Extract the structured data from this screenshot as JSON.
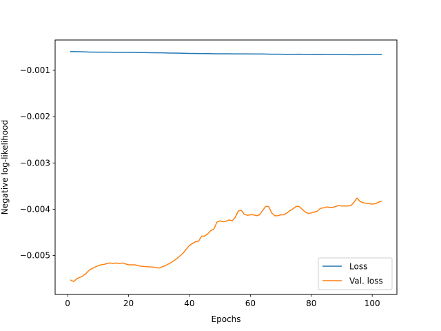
{
  "chart_data": {
    "type": "line",
    "xlabel": "Epochs",
    "ylabel": "Negative log-likelihood",
    "xlim": [
      -4.1,
      108.1
    ],
    "ylim": [
      -0.00584,
      -0.000345
    ],
    "x_ticks": [
      {
        "value": 0,
        "label": "0"
      },
      {
        "value": 20,
        "label": "20"
      },
      {
        "value": 40,
        "label": "40"
      },
      {
        "value": 60,
        "label": "60"
      },
      {
        "value": 80,
        "label": "80"
      },
      {
        "value": 100,
        "label": "100"
      }
    ],
    "y_ticks": [
      {
        "value": -0.001,
        "label": "−0.001"
      },
      {
        "value": -0.002,
        "label": "−0.002"
      },
      {
        "value": -0.003,
        "label": "−0.003"
      },
      {
        "value": -0.004,
        "label": "−0.004"
      },
      {
        "value": -0.005,
        "label": "−0.005"
      }
    ],
    "grid": false,
    "legend_position": "lower-right",
    "series": [
      {
        "name": "Loss",
        "color": "#1f77b4",
        "x": [
          1,
          4,
          7,
          10,
          13,
          16,
          19,
          22,
          25,
          28,
          31,
          34,
          37,
          40,
          43,
          46,
          49,
          52,
          55,
          58,
          61,
          64,
          67,
          70,
          73,
          76,
          79,
          82,
          85,
          88,
          91,
          94,
          97,
          100,
          103
        ],
        "y": [
          -0.000595,
          -0.000599,
          -0.000605,
          -0.000608,
          -0.000608,
          -0.000612,
          -0.000612,
          -0.000614,
          -0.000616,
          -0.000621,
          -0.000623,
          -0.000627,
          -0.00063,
          -0.000635,
          -0.000637,
          -0.000639,
          -0.000642,
          -0.000642,
          -0.000644,
          -0.000645,
          -0.000646,
          -0.000647,
          -0.000652,
          -0.000653,
          -0.000655,
          -0.000653,
          -0.000658,
          -0.000655,
          -0.000657,
          -0.00066,
          -0.00066,
          -0.000664,
          -0.000661,
          -0.00066,
          -0.000658
        ]
      },
      {
        "name": "Val. loss",
        "color": "#ff7f0e",
        "x": [
          1,
          2,
          3,
          4,
          5,
          6,
          7,
          8,
          9,
          10,
          11,
          12,
          13,
          14,
          15,
          16,
          17,
          18,
          19,
          20,
          22,
          24,
          26,
          28,
          30,
          32,
          34,
          36,
          38,
          40,
          42,
          43,
          44,
          45,
          46,
          47,
          48,
          49,
          50,
          51,
          52,
          53,
          54,
          55,
          56,
          57,
          58,
          59,
          60,
          61,
          62,
          63,
          64,
          65,
          66,
          67,
          68,
          69,
          70,
          71,
          72,
          73,
          74,
          75,
          76,
          77,
          78,
          79,
          80,
          81,
          82,
          83,
          84,
          85,
          86,
          87,
          88,
          89,
          90,
          91,
          92,
          93,
          94,
          95,
          96,
          97,
          98,
          99,
          100,
          101,
          102,
          103
        ],
        "y": [
          -0.00553,
          -0.00556,
          -0.0055,
          -0.00547,
          -0.00544,
          -0.00539,
          -0.00532,
          -0.00528,
          -0.00525,
          -0.00522,
          -0.0052,
          -0.00519,
          -0.00517,
          -0.00516,
          -0.00517,
          -0.00516,
          -0.00517,
          -0.00516,
          -0.00518,
          -0.0052,
          -0.0052,
          -0.00523,
          -0.00524,
          -0.00525,
          -0.00527,
          -0.00522,
          -0.00515,
          -0.00506,
          -0.00494,
          -0.00478,
          -0.0047,
          -0.00469,
          -0.00458,
          -0.00458,
          -0.00453,
          -0.00446,
          -0.00443,
          -0.00428,
          -0.00425,
          -0.00427,
          -0.00426,
          -0.00423,
          -0.00425,
          -0.00418,
          -0.00404,
          -0.00402,
          -0.00411,
          -0.00413,
          -0.00412,
          -0.00412,
          -0.00414,
          -0.00412,
          -0.00403,
          -0.00394,
          -0.00394,
          -0.00408,
          -0.00414,
          -0.00414,
          -0.00412,
          -0.00412,
          -0.00408,
          -0.00403,
          -0.00399,
          -0.00394,
          -0.00394,
          -0.004,
          -0.00406,
          -0.00409,
          -0.00408,
          -0.00406,
          -0.00404,
          -0.00398,
          -0.00397,
          -0.00395,
          -0.00396,
          -0.00396,
          -0.00394,
          -0.00392,
          -0.00393,
          -0.00393,
          -0.00393,
          -0.00392,
          -0.00385,
          -0.00376,
          -0.00383,
          -0.00386,
          -0.00387,
          -0.00388,
          -0.00389,
          -0.00388,
          -0.00385,
          -0.00383
        ]
      }
    ]
  }
}
